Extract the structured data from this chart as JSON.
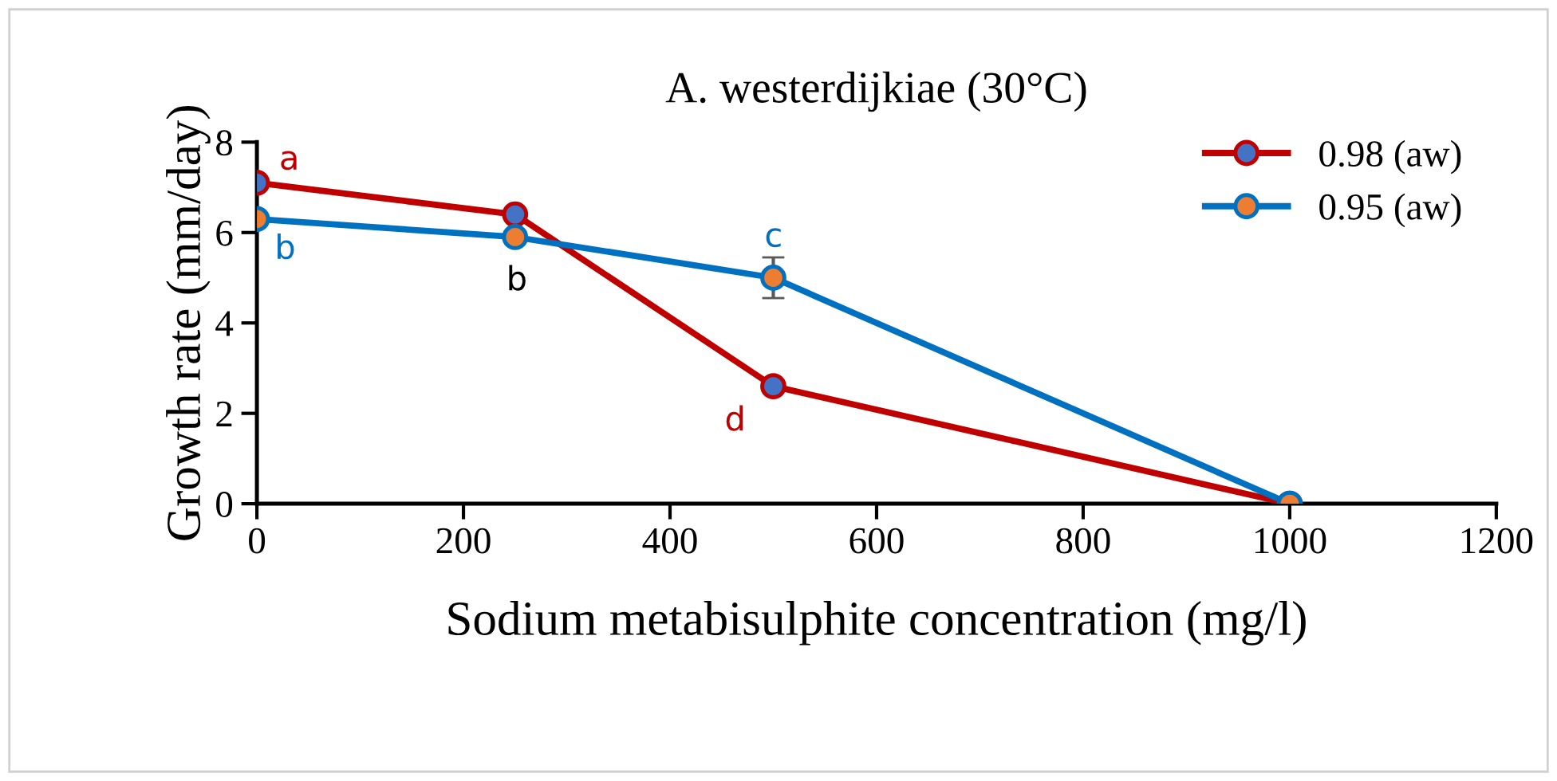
{
  "chart_data": {
    "type": "line",
    "title": "A. westerdijkiae (30°C)",
    "xlabel": "Sodium metabisulphite concentration (mg/l)",
    "ylabel": "Growth rate (mm/day)",
    "x": [
      0,
      250,
      500,
      1000
    ],
    "series": [
      {
        "name": "0.98 (aw)",
        "color": "#c00000",
        "colors": [
          "#4472c4",
          "#4472c4",
          "#4472c4",
          "#4472c4"
        ],
        "values": [
          7.1,
          6.4,
          2.6,
          0
        ],
        "value_labels": [
          "a",
          null,
          "d",
          null
        ]
      },
      {
        "name": "0.95 (aw)",
        "color": "#0070c0",
        "colors": [
          "#ed7d31",
          "#ed7d31",
          "#ed7d31",
          "#ed7d31"
        ],
        "values": [
          6.3,
          5.9,
          5.0,
          0
        ],
        "errors": [
          null,
          null,
          0.45,
          null
        ],
        "value_labels": [
          "b",
          null,
          "c",
          null
        ]
      }
    ],
    "annotations": [
      {
        "text": "b",
        "x": 250,
        "y": 5.9
      }
    ],
    "xlim": [
      0,
      1200
    ],
    "xticks": [
      0,
      200,
      400,
      600,
      800,
      1000,
      1200
    ],
    "ylim": [
      0,
      8
    ],
    "yticks": [
      0,
      2,
      4,
      6,
      8
    ],
    "marker": "circle",
    "legend": "top right",
    "grid": false
  }
}
